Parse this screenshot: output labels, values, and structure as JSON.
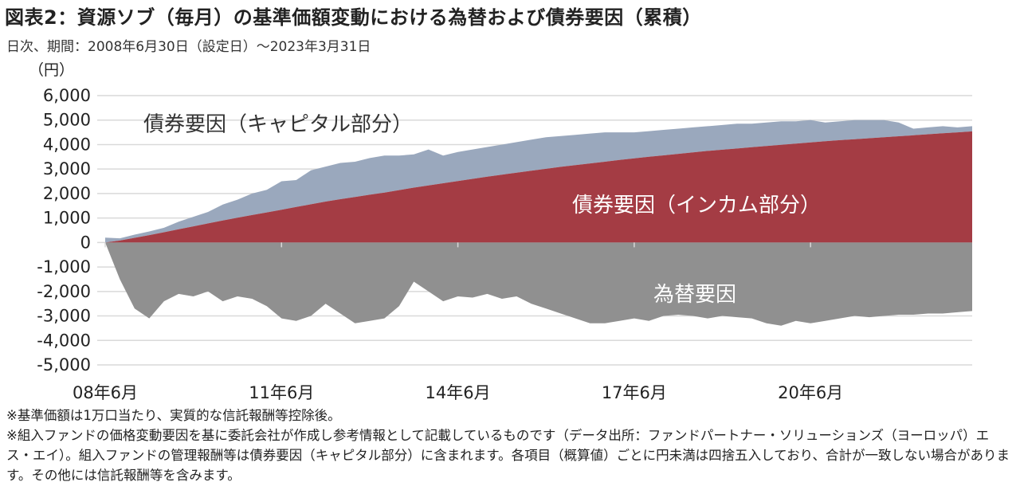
{
  "title": "図表2：資源ソブ（毎月）の基準価額変動における為替および債券要因（累積）",
  "subtitle": "日次、期間：2008年6月30日（設定日）～2023年3月31日",
  "notes": [
    "※基準価額は1万口当たり、実質的な信託報酬等控除後。",
    "※組入ファンドの価格変動要因を基に委託会社が作成し参考情報として記載しているものです（データ出所：ファンドパートナー・ソリューションズ（ヨーロッパ）エス・エイ）。組入ファンドの管理報酬等は債券要因（キャピタル部分）に含まれます。各項目（概算値）ごとに円未満は四捨五入しており、合計が一致しない場合があります。その他には信託報酬等を含みます。"
  ],
  "colors": {
    "capital": "#9aa8bd",
    "income": "#a43c44",
    "fx": "#909090",
    "grid": "#d9d9d9",
    "anno_dark": "#333333",
    "anno_light": "#ffffff"
  },
  "chart_data": {
    "type": "area",
    "ylabel": "（円）",
    "ylim": [
      -5000,
      6000
    ],
    "yticks": [
      6000,
      5000,
      4000,
      3000,
      2000,
      1000,
      0,
      -1000,
      -2000,
      -3000,
      -4000,
      -5000
    ],
    "ytick_labels": [
      "6,000",
      "5,000",
      "4,000",
      "3,000",
      "2,000",
      "1,000",
      "0",
      "-1,000",
      "-2,000",
      "-3,000",
      "-4,000",
      "-5,000"
    ],
    "xlim": [
      "2008-06",
      "2023-03"
    ],
    "xticks": [
      "2008-06",
      "2011-06",
      "2014-06",
      "2017-06",
      "2020-06"
    ],
    "xtick_labels": [
      "08年6月",
      "11年6月",
      "14年6月",
      "17年6月",
      "20年6月"
    ],
    "grid": true,
    "annotations": [
      {
        "text": "債券要因（キャピタル部分）",
        "series": "capital"
      },
      {
        "text": "債券要因（インカム部分）",
        "series": "income"
      },
      {
        "text": "為替要因",
        "series": "fx"
      }
    ],
    "x": [
      "2008-06",
      "2008-09",
      "2008-12",
      "2009-03",
      "2009-06",
      "2009-09",
      "2009-12",
      "2010-03",
      "2010-06",
      "2010-09",
      "2010-12",
      "2011-03",
      "2011-06",
      "2011-09",
      "2011-12",
      "2012-03",
      "2012-06",
      "2012-09",
      "2012-12",
      "2013-03",
      "2013-06",
      "2013-09",
      "2013-12",
      "2014-03",
      "2014-06",
      "2014-09",
      "2014-12",
      "2015-03",
      "2015-06",
      "2015-09",
      "2015-12",
      "2016-03",
      "2016-06",
      "2016-09",
      "2016-12",
      "2017-03",
      "2017-06",
      "2017-09",
      "2017-12",
      "2018-03",
      "2018-06",
      "2018-09",
      "2018-12",
      "2019-03",
      "2019-06",
      "2019-09",
      "2019-12",
      "2020-03",
      "2020-06",
      "2020-09",
      "2020-12",
      "2021-03",
      "2021-06",
      "2021-09",
      "2021-12",
      "2022-03",
      "2022-06",
      "2022-09",
      "2022-12",
      "2023-03"
    ],
    "series": [
      {
        "key": "income",
        "values": [
          0,
          80,
          190,
          300,
          420,
          540,
          660,
          780,
          900,
          1010,
          1120,
          1230,
          1340,
          1450,
          1560,
          1670,
          1770,
          1860,
          1950,
          2040,
          2140,
          2240,
          2330,
          2420,
          2510,
          2600,
          2690,
          2770,
          2850,
          2930,
          3010,
          3090,
          3160,
          3230,
          3300,
          3370,
          3440,
          3500,
          3560,
          3620,
          3680,
          3740,
          3790,
          3840,
          3890,
          3940,
          3990,
          4040,
          4090,
          4140,
          4180,
          4220,
          4260,
          4300,
          4340,
          4380,
          4420,
          4460,
          4500,
          4540
        ]
      },
      {
        "key": "total_top",
        "values": [
          200,
          170,
          320,
          450,
          600,
          850,
          1050,
          1250,
          1550,
          1750,
          2000,
          2150,
          2500,
          2550,
          2950,
          3100,
          3250,
          3300,
          3450,
          3550,
          3550,
          3600,
          3800,
          3550,
          3700,
          3800,
          3900,
          4000,
          4100,
          4200,
          4300,
          4350,
          4400,
          4450,
          4500,
          4500,
          4500,
          4550,
          4600,
          4650,
          4700,
          4750,
          4800,
          4850,
          4850,
          4900,
          4950,
          4950,
          5000,
          4900,
          4950,
          5000,
          5000,
          5000,
          4900,
          4650,
          4700,
          4750,
          4700,
          4750
        ]
      },
      {
        "key": "fx",
        "values": [
          0,
          -1500,
          -2700,
          -3100,
          -2400,
          -2100,
          -2200,
          -2000,
          -2400,
          -2200,
          -2300,
          -2600,
          -3100,
          -3200,
          -3000,
          -2500,
          -2900,
          -3300,
          -3200,
          -3100,
          -2600,
          -1600,
          -2000,
          -2400,
          -2200,
          -2250,
          -2100,
          -2300,
          -2200,
          -2500,
          -2700,
          -2900,
          -3100,
          -3300,
          -3300,
          -3200,
          -3100,
          -3200,
          -3000,
          -2950,
          -3000,
          -3100,
          -3000,
          -3050,
          -3100,
          -3300,
          -3400,
          -3200,
          -3300,
          -3200,
          -3100,
          -3000,
          -3050,
          -3000,
          -2950,
          -2950,
          -2900,
          -2900,
          -2850,
          -2800
        ]
      }
    ]
  }
}
